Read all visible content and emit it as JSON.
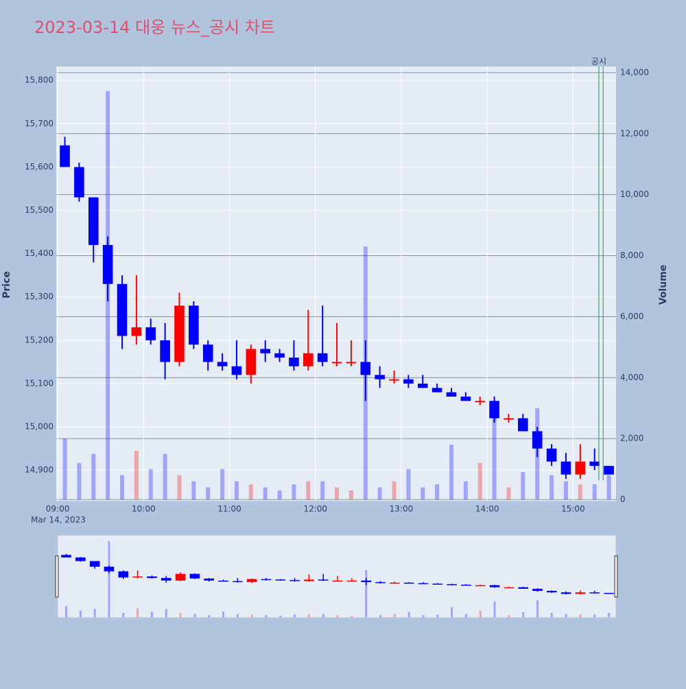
{
  "chart_data": {
    "type": "candlestick",
    "title": "2023-03-14 대웅 뉴스_공시 차트",
    "y_label": "Price",
    "y2_label": "Volume",
    "date_label": "Mar 14, 2023",
    "increasing_color": "#ff0000",
    "decreasing_color": "#0000ff",
    "annotation": {
      "text": "공시",
      "x": [
        "15:18",
        "15:21"
      ],
      "color": "#2e8b57"
    },
    "x": [
      "09:00",
      "09:10",
      "09:20",
      "09:30",
      "09:40",
      "09:50",
      "10:00",
      "10:10",
      "10:20",
      "10:30",
      "10:40",
      "10:50",
      "11:00",
      "11:10",
      "11:20",
      "11:30",
      "11:40",
      "11:50",
      "12:00",
      "12:10",
      "12:20",
      "12:30",
      "12:40",
      "12:50",
      "13:00",
      "13:10",
      "13:20",
      "13:30",
      "13:40",
      "13:50",
      "14:00",
      "14:10",
      "14:20",
      "14:30",
      "14:40",
      "14:50",
      "15:00",
      "15:10",
      "15:20"
    ],
    "open": [
      15650,
      15600,
      15530,
      15420,
      15330,
      15210,
      15230,
      15200,
      15150,
      15280,
      15190,
      15150,
      15140,
      15120,
      15180,
      15170,
      15160,
      15140,
      15170,
      15150,
      15150,
      15150,
      15120,
      15110,
      15110,
      15100,
      15090,
      15080,
      15070,
      15060,
      15060,
      15020,
      15020,
      14990,
      14950,
      14920,
      14890,
      14920,
      14910
    ],
    "high": [
      15670,
      15610,
      15530,
      15440,
      15350,
      15350,
      15250,
      15240,
      15310,
      15290,
      15200,
      15170,
      15200,
      15190,
      15200,
      15180,
      15200,
      15270,
      15280,
      15240,
      15200,
      15200,
      15140,
      15130,
      15120,
      15120,
      15100,
      15090,
      15080,
      15070,
      15070,
      15030,
      15030,
      15000,
      14960,
      14940,
      14960,
      14950,
      14910
    ],
    "low": [
      15600,
      15520,
      15380,
      15290,
      15180,
      15190,
      15190,
      15110,
      15140,
      15180,
      15130,
      15130,
      15110,
      15100,
      15150,
      15150,
      15130,
      15130,
      15140,
      15140,
      15140,
      15060,
      15090,
      15100,
      15090,
      15090,
      15080,
      15070,
      15060,
      15050,
      15010,
      15010,
      14990,
      14930,
      14910,
      14880,
      14880,
      14900,
      14890
    ],
    "close": [
      15600,
      15530,
      15420,
      15330,
      15210,
      15230,
      15200,
      15150,
      15280,
      15190,
      15150,
      15140,
      15120,
      15180,
      15170,
      15160,
      15140,
      15170,
      15150,
      15150,
      15150,
      15120,
      15110,
      15110,
      15100,
      15090,
      15080,
      15070,
      15060,
      15060,
      15020,
      15020,
      14990,
      14950,
      14920,
      14890,
      14920,
      14910,
      14890
    ],
    "volume": [
      2000,
      1200,
      1500,
      13400,
      800,
      1600,
      1000,
      1500,
      800,
      600,
      400,
      1000,
      600,
      500,
      400,
      300,
      500,
      600,
      600,
      400,
      300,
      8300,
      400,
      600,
      1000,
      400,
      500,
      1800,
      600,
      1200,
      2800,
      400,
      900,
      3000,
      800,
      600,
      500,
      500,
      800
    ],
    "xlim": [
      "08:59",
      "15:30"
    ],
    "xticks": [
      "09:00",
      "10:00",
      "11:00",
      "12:00",
      "13:00",
      "14:00",
      "15:00"
    ],
    "ylim": [
      14829,
      15832
    ],
    "yticks": [
      {
        "value": 14900,
        "label": "14,900"
      },
      {
        "value": 15000,
        "label": "15,000"
      },
      {
        "value": 15100,
        "label": "15,100"
      },
      {
        "value": 15200,
        "label": "15,200"
      },
      {
        "value": 15300,
        "label": "15,300"
      },
      {
        "value": 15400,
        "label": "15,400"
      },
      {
        "value": 15500,
        "label": "15,500"
      },
      {
        "value": 15600,
        "label": "15,600"
      },
      {
        "value": 15700,
        "label": "15,700"
      },
      {
        "value": 15800,
        "label": "15,800"
      }
    ],
    "y2lim": [
      -45,
      14200
    ],
    "y2ticks": [
      0,
      {
        "value": 2000,
        "label": "2,000"
      },
      {
        "value": 4000,
        "label": "4,000"
      },
      {
        "value": 6000,
        "label": "6,000"
      },
      {
        "value": 8000,
        "label": "8,000"
      },
      {
        "value": 10000,
        "label": "10,000"
      },
      {
        "value": 12000,
        "label": "12,000"
      },
      {
        "value": 14000,
        "label": "14,000"
      }
    ],
    "grid": true
  }
}
